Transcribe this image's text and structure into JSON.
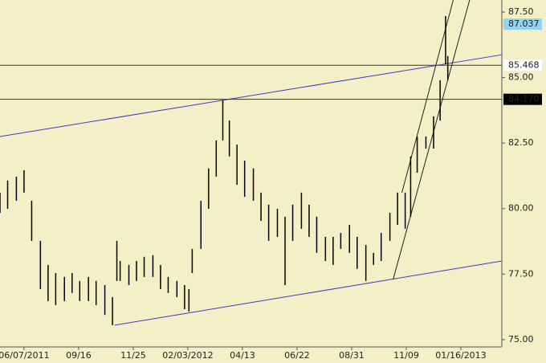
{
  "chart_data": {
    "type": "hilo",
    "color": "#000000",
    "x": [
      -22,
      -15,
      -7,
      0,
      7,
      15,
      22,
      29,
      37,
      44,
      51,
      59,
      66,
      74,
      81,
      85,
      88,
      96,
      103,
      110,
      118,
      125,
      132,
      140,
      147,
      151,
      154,
      162,
      169,
      176,
      182,
      188,
      195,
      202,
      210,
      217,
      224,
      232,
      239,
      246,
      254,
      261,
      268,
      276,
      283,
      290,
      298,
      305,
      313,
      320,
      327,
      335,
      342,
      349,
      354,
      360,
      368,
      375,
      381,
      386,
      388
    ],
    "high": [
      80.61,
      81.07,
      81.22,
      81.46,
      80.3,
      78.77,
      77.85,
      77.54,
      77.39,
      77.54,
      77.24,
      77.39,
      77.24,
      77.08,
      76.62,
      78.77,
      78.0,
      77.85,
      78.0,
      78.16,
      78.22,
      77.85,
      77.39,
      77.24,
      77.08,
      76.93,
      78.46,
      80.3,
      81.53,
      82.6,
      84.13,
      83.36,
      82.44,
      81.83,
      81.53,
      80.61,
      80.15,
      79.99,
      79.69,
      80.15,
      80.61,
      80.15,
      79.69,
      78.92,
      78.92,
      79.07,
      79.38,
      78.92,
      78.61,
      78.31,
      79.07,
      79.84,
      80.61,
      80.61,
      81.99,
      82.75,
      82.75,
      83.52,
      84.9,
      87.35,
      85.82
    ],
    "low": [
      79.84,
      79.99,
      80.3,
      80.61,
      78.77,
      76.93,
      76.47,
      76.32,
      76.47,
      76.78,
      76.47,
      76.47,
      76.32,
      75.94,
      75.55,
      77.24,
      77.24,
      77.08,
      77.24,
      77.39,
      77.39,
      76.93,
      76.78,
      76.62,
      76.16,
      76.07,
      77.54,
      78.46,
      79.99,
      81.22,
      82.6,
      81.99,
      80.91,
      80.45,
      80.3,
      79.53,
      78.77,
      78.92,
      77.08,
      78.77,
      79.23,
      78.92,
      78.31,
      78.0,
      77.85,
      78.46,
      78.31,
      77.7,
      77.24,
      77.85,
      78.0,
      78.77,
      79.38,
      79.23,
      79.69,
      81.37,
      82.29,
      82.29,
      83.36,
      85.51,
      84.9
    ],
    "xlim": [
      -22,
      437.5
    ],
    "xticks": [
      {
        "value": 0,
        "label": "06/07/2011"
      },
      {
        "value": 50,
        "label": "09/16"
      },
      {
        "value": 100,
        "label": "11/25"
      },
      {
        "value": 150,
        "label": "02/03/2012"
      },
      {
        "value": 200,
        "label": "04/13"
      },
      {
        "value": 250,
        "label": "06/22"
      },
      {
        "value": 300,
        "label": "08/31"
      },
      {
        "value": 350,
        "label": "11/09"
      },
      {
        "value": 400,
        "label": "01/16/2013"
      }
    ],
    "ylim": [
      74.72,
      87.96
    ],
    "yticks": [
      {
        "value": 75,
        "label": "75.00"
      },
      {
        "value": 77.5,
        "label": "77.50"
      },
      {
        "value": 80,
        "label": "80.00"
      },
      {
        "value": 82.5,
        "label": "82.50"
      },
      {
        "value": 85,
        "label": "85.00"
      },
      {
        "value": 87.5,
        "label": "87.50"
      }
    ],
    "price_markers": [
      {
        "value": 87.037,
        "background": "#8fd3f5",
        "text_color": "#000000",
        "line": false
      },
      {
        "value": 85.468,
        "background": "#ffffff",
        "text_color": "#000000",
        "line": true
      },
      {
        "value": 84.17,
        "label": "84.170",
        "background": "#000000",
        "text_color": "#ffffff",
        "line": true
      }
    ],
    "trendlines": [
      {
        "x": [
          -22,
          437.5
        ],
        "y": [
          82.75,
          85.87
        ],
        "color": "#3c3cc8"
      },
      {
        "x": [
          83,
          437.5
        ],
        "y": [
          75.55,
          78.0
        ],
        "color": "#3c3cc8"
      },
      {
        "x": [
          338,
          408
        ],
        "y": [
          77.3,
          87.96
        ],
        "color": "#222222"
      },
      {
        "x": [
          346,
          393
        ],
        "y": [
          80.61,
          87.96
        ],
        "color": "#222222"
      }
    ]
  }
}
